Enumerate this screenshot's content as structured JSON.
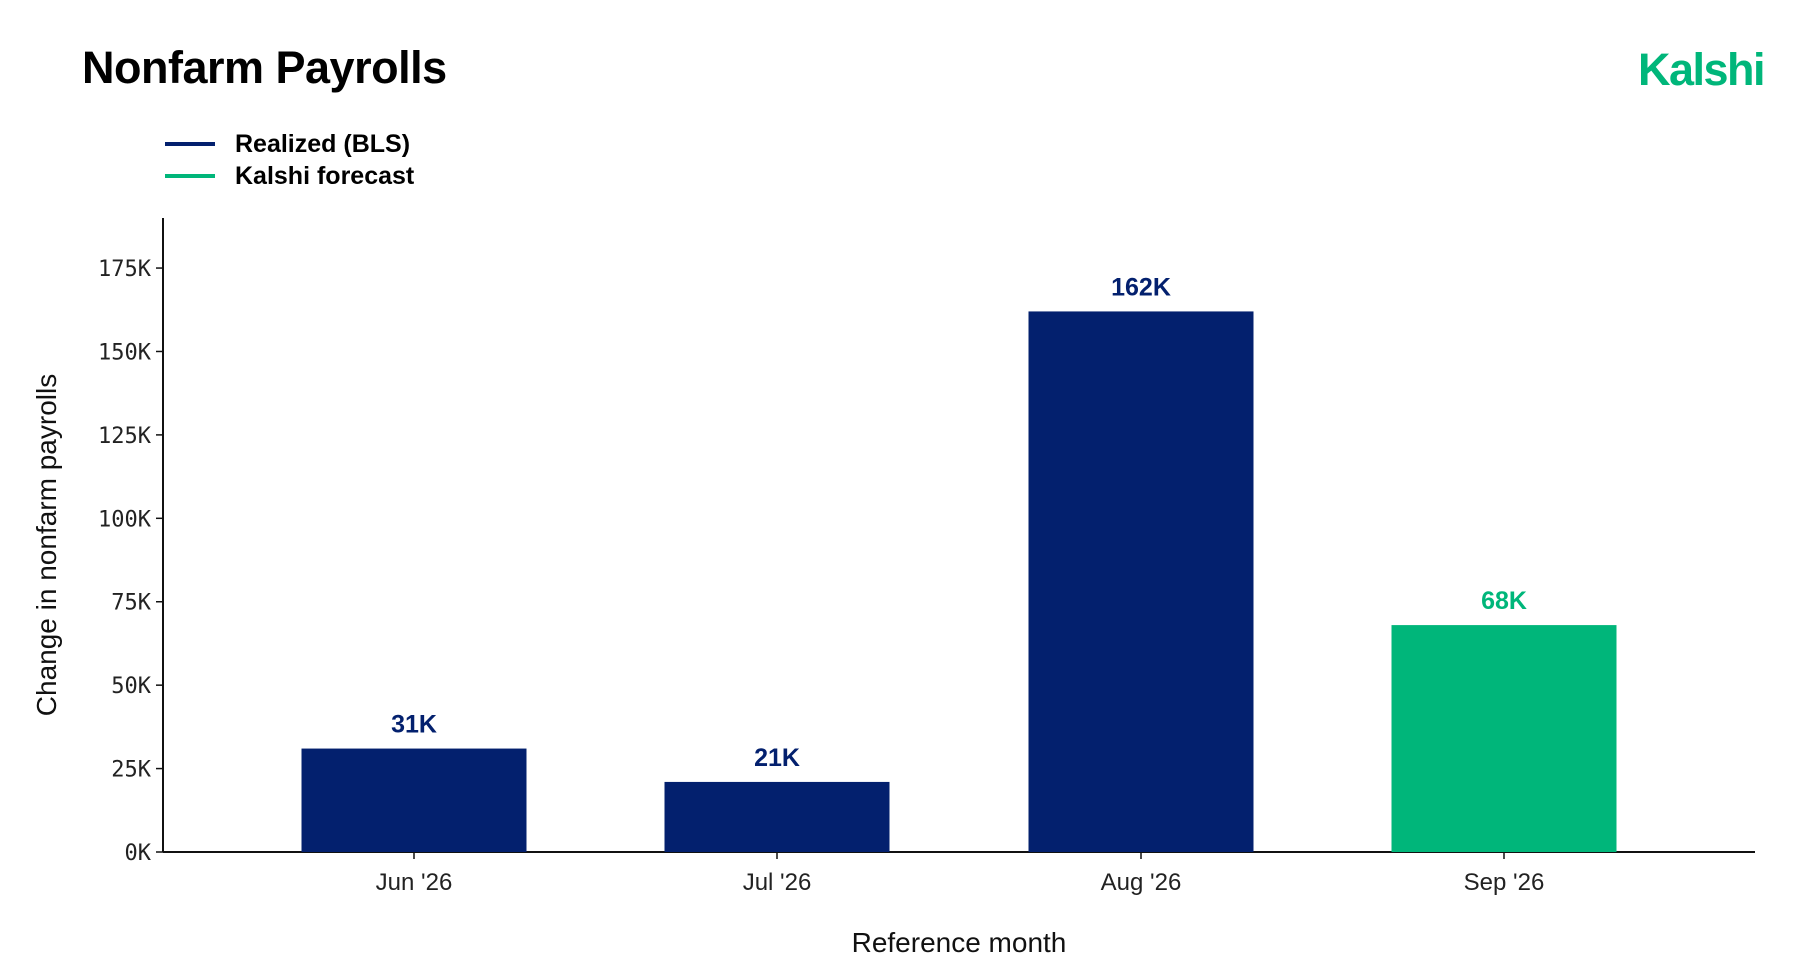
{
  "header": {
    "title": "Nonfarm Payrolls",
    "logo_text": "Kalshi"
  },
  "colors": {
    "realized": "#03206e",
    "forecast": "#00b67a",
    "logo": "#00b67a",
    "axis": "#111111"
  },
  "legend": [
    {
      "label": "Realized (BLS)",
      "color": "#03206e"
    },
    {
      "label": "Kalshi forecast",
      "color": "#00b67a"
    }
  ],
  "chart_data": {
    "type": "bar",
    "categories": [
      "Jun '26",
      "Jul '26",
      "Aug '26",
      "Sep '26"
    ],
    "values": [
      31,
      21,
      162,
      68
    ],
    "value_unit": "K",
    "data_labels": [
      "31K",
      "21K",
      "162K",
      "68K"
    ],
    "bar_kinds": [
      "realized",
      "realized",
      "realized",
      "forecast"
    ],
    "xlabel": "Reference month",
    "ylabel": "Change in nonfarm payrolls",
    "ylim": [
      0,
      190
    ],
    "yticks": [
      0,
      25,
      50,
      75,
      100,
      125,
      150,
      175
    ],
    "ytick_labels": [
      "0K",
      "25K",
      "50K",
      "75K",
      "100K",
      "125K",
      "150K",
      "175K"
    ],
    "grid": false,
    "legend_position": "top-left"
  }
}
